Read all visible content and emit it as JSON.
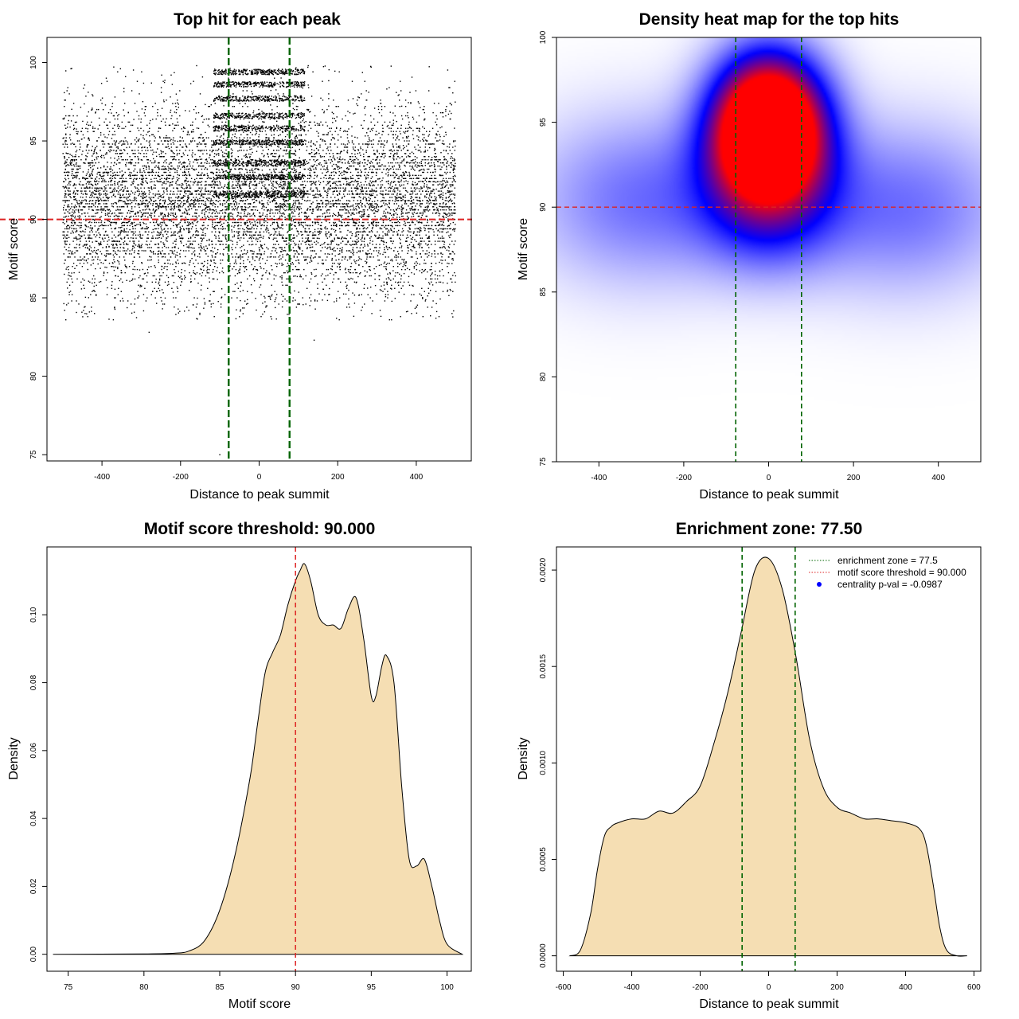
{
  "chart_data": [
    {
      "type": "scatter",
      "title": "Top hit for each peak",
      "xlabel": "Distance to peak summit",
      "ylabel": "Motif score",
      "xlim": [
        -540,
        540
      ],
      "ylim": [
        74.6,
        101.6
      ],
      "xticks": [
        -400,
        -200,
        0,
        200,
        400
      ],
      "yticks": [
        75,
        80,
        85,
        90,
        95,
        100
      ],
      "hline": {
        "y": 90,
        "color": "#dd2222"
      },
      "vlines": {
        "x": [
          -77.5,
          77.5
        ],
        "color": "#006400"
      },
      "point_color": "#000000",
      "points_approx": {
        "x_range": [
          -500,
          500
        ],
        "y_range": [
          74.9,
          99.8
        ],
        "y_center": 91.2,
        "y_sd": 3.0,
        "count": 9000,
        "extra_dense_central_x": [
          -77.5,
          77.5
        ],
        "outliers": [
          [
            -280,
            82.8
          ],
          [
            -100,
            75.0
          ],
          [
            140,
            82.3
          ]
        ]
      }
    },
    {
      "type": "heatmap",
      "title": "Density heat map for the top hits",
      "xlabel": "Distance to peak summit",
      "ylabel": "Motif score",
      "xlim": [
        -500,
        500
      ],
      "ylim": [
        75,
        100
      ],
      "xticks": [
        -400,
        -200,
        0,
        200,
        400
      ],
      "yticks": [
        75,
        80,
        85,
        90,
        95,
        100
      ],
      "hline": {
        "y": 90,
        "color": "#dd2222"
      },
      "vlines": {
        "x": [
          -77.5,
          77.5
        ],
        "color": "#006400"
      },
      "colors": [
        "#ffffff",
        "#0000ff",
        "#ff0000"
      ],
      "density_components": [
        {
          "x": 0,
          "y": 96,
          "sx": 90,
          "sy": 2.5,
          "w": 1.0
        },
        {
          "x": 0,
          "y": 93.6,
          "sx": 90,
          "sy": 2.3,
          "w": 0.9
        },
        {
          "x": 0,
          "y": 90.5,
          "sx": 110,
          "sy": 2.8,
          "w": 0.5
        },
        {
          "x": -300,
          "y": 90.5,
          "sx": 180,
          "sy": 3.5,
          "w": 0.28
        },
        {
          "x": 320,
          "y": 90.0,
          "sx": 180,
          "sy": 3.5,
          "w": 0.28
        }
      ]
    },
    {
      "type": "area",
      "title": "Motif score threshold: 90.000",
      "xlabel": "Motif score",
      "ylabel": "Density",
      "xlim": [
        73.6,
        101.6
      ],
      "ylim": [
        -0.005,
        0.12
      ],
      "xticks": [
        75,
        80,
        85,
        90,
        95,
        100
      ],
      "yticks": [
        0.0,
        0.02,
        0.04,
        0.06,
        0.08,
        0.1
      ],
      "ytick_labels": [
        "0.00",
        "0.02",
        "0.04",
        "0.06",
        "0.08",
        "0.10"
      ],
      "fill_color": "#f5deb3",
      "vline": {
        "x": 90,
        "color": "#dd2222"
      },
      "x": [
        74,
        80,
        82,
        83,
        84,
        85,
        86,
        87,
        87.5,
        88,
        88.5,
        89,
        89.5,
        90,
        90.3,
        90.6,
        91,
        91.5,
        92,
        92.5,
        93,
        93.5,
        94,
        94.5,
        95,
        95.3,
        95.7,
        96,
        96.5,
        97,
        97.5,
        98,
        98.5,
        99,
        99.5,
        100,
        101
      ],
      "y": [
        0.0,
        0.0001,
        0.0003,
        0.001,
        0.004,
        0.013,
        0.029,
        0.052,
        0.068,
        0.083,
        0.089,
        0.094,
        0.103,
        0.11,
        0.113,
        0.115,
        0.11,
        0.1,
        0.097,
        0.097,
        0.096,
        0.102,
        0.105,
        0.093,
        0.076,
        0.076,
        0.085,
        0.088,
        0.08,
        0.05,
        0.028,
        0.026,
        0.028,
        0.02,
        0.01,
        0.003,
        0.0
      ]
    },
    {
      "type": "area",
      "title": "Enrichment zone: 77.50",
      "xlabel": "Distance to peak summit",
      "ylabel": "Density",
      "xlim": [
        -620,
        620
      ],
      "ylim": [
        -8e-05,
        0.00212
      ],
      "xticks": [
        -600,
        -400,
        -200,
        0,
        200,
        400,
        600
      ],
      "yticks": [
        0.0,
        0.0005,
        0.001,
        0.0015,
        0.002
      ],
      "ytick_labels": [
        "0.0000",
        "0.0005",
        "0.0010",
        "0.0015",
        "0.0020"
      ],
      "fill_color": "#f5deb3",
      "vlines": {
        "x": [
          -77.5,
          77.5
        ],
        "color": "#006400"
      },
      "x": [
        -580,
        -550,
        -520,
        -500,
        -480,
        -460,
        -440,
        -400,
        -360,
        -320,
        -280,
        -240,
        -200,
        -160,
        -120,
        -80,
        -40,
        0,
        40,
        80,
        120,
        160,
        200,
        240,
        280,
        320,
        360,
        400,
        440,
        460,
        480,
        500,
        520,
        550,
        580
      ],
      "y": [
        0.0,
        3e-05,
        0.00022,
        0.00045,
        0.00062,
        0.00067,
        0.00069,
        0.00071,
        0.00071,
        0.00075,
        0.00074,
        0.0008,
        0.00088,
        0.0011,
        0.00136,
        0.00168,
        0.002,
        0.00206,
        0.0019,
        0.00155,
        0.00112,
        0.00087,
        0.00077,
        0.00074,
        0.00071,
        0.00071,
        0.0007,
        0.00069,
        0.00066,
        0.00058,
        0.00038,
        0.00015,
        3e-05,
        0.0,
        0.0
      ],
      "legend": {
        "placement": "top-right",
        "entries": [
          {
            "label": "enrichment zone = 77.5",
            "color": "#006400",
            "style": "dotted-line"
          },
          {
            "label": "motif score threshold = 90.000",
            "color": "#dd2222",
            "style": "dotted-line"
          },
          {
            "label": "centrality p-val = -0.0987",
            "color": "#0000ff",
            "style": "point"
          }
        ]
      }
    }
  ]
}
